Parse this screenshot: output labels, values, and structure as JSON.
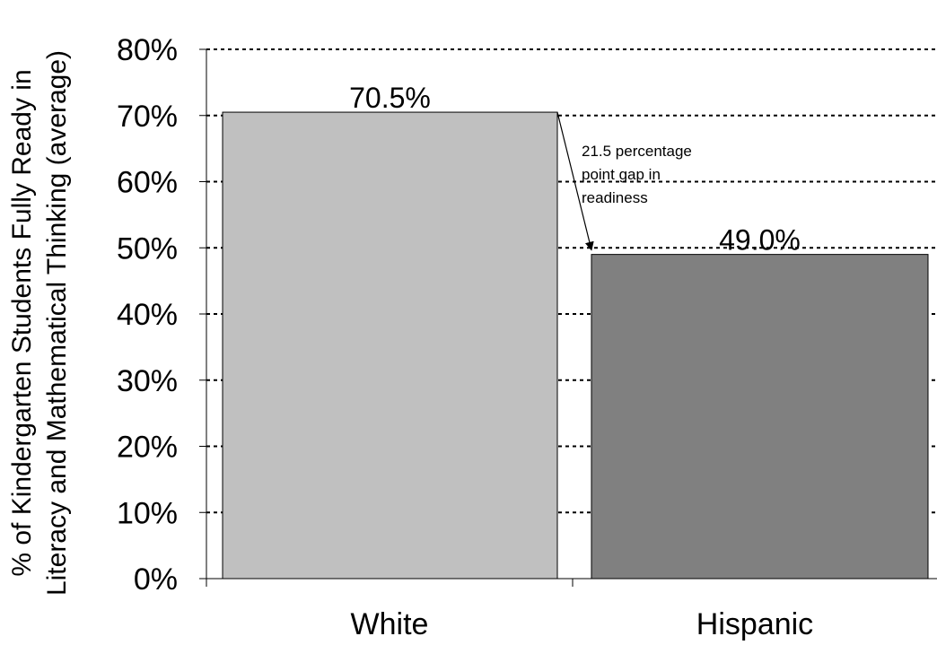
{
  "chart_data": {
    "type": "bar",
    "title": "",
    "xlabel": "",
    "ylabel_lines": [
      "% of Kindergarten Students Fully Ready in",
      "Literacy and Mathematical Thinking (average)"
    ],
    "ylim": [
      0,
      80
    ],
    "yticks": [
      0,
      10,
      20,
      30,
      40,
      50,
      60,
      70,
      80
    ],
    "ytick_format": "%",
    "grid": true,
    "categories": [
      "White",
      "Hispanic"
    ],
    "values": [
      70.5,
      49.0
    ],
    "data_labels": [
      "70.5%",
      "49.0%"
    ],
    "colors": [
      "#c0c0c0",
      "#808080"
    ],
    "annotation": {
      "lines": [
        "21.5 percentage",
        "point gap in",
        "readiness"
      ],
      "from_category": "White",
      "to_category": "Hispanic"
    }
  }
}
